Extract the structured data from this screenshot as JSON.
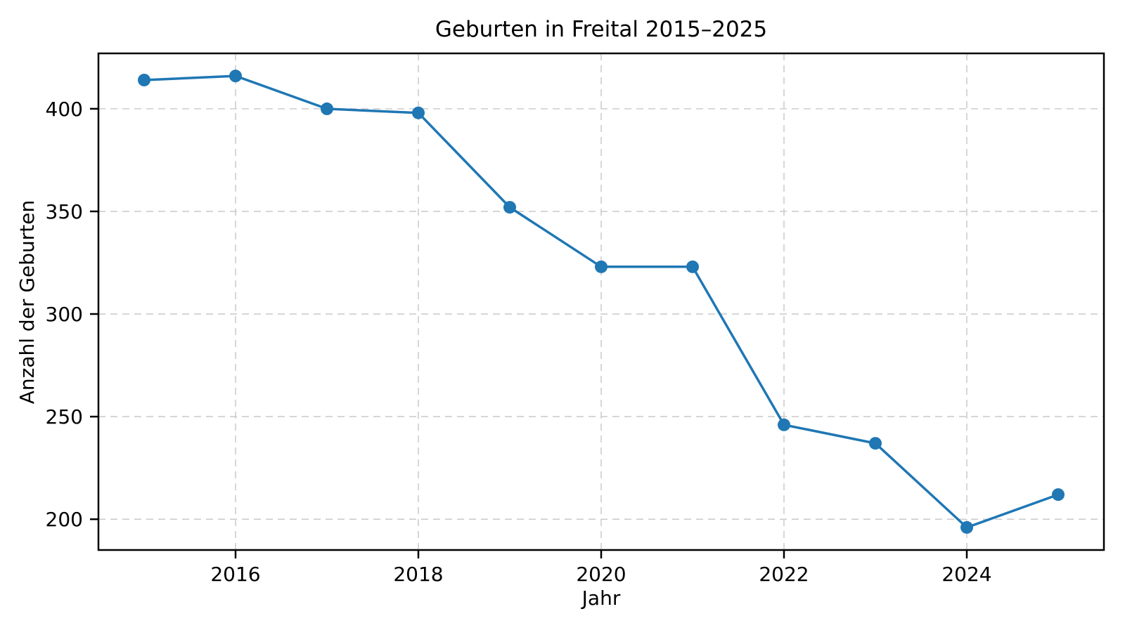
{
  "chart_data": {
    "type": "line",
    "title": "Geburten in Freital 2015–2025",
    "xlabel": "Jahr",
    "ylabel": "Anzahl der Geburten",
    "x": [
      2015,
      2016,
      2017,
      2018,
      2019,
      2020,
      2021,
      2022,
      2023,
      2024,
      2025
    ],
    "series": [
      {
        "name": "Geburten",
        "values": [
          414,
          416,
          400,
          398,
          352,
          323,
          323,
          246,
          237,
          196,
          212
        ]
      }
    ],
    "xticks": [
      2016,
      2018,
      2020,
      2022,
      2024
    ],
    "yticks": [
      200,
      250,
      300,
      350,
      400
    ],
    "xlim": [
      2014.5,
      2025.5
    ],
    "ylim": [
      185,
      427
    ],
    "grid": true,
    "grid_style": "dashed",
    "legend": "none",
    "colors": {
      "line": "#1f77b4",
      "marker": "#1f77b4",
      "grid": "#cdcdcd",
      "axis": "#000000",
      "background": "#ffffff"
    }
  }
}
